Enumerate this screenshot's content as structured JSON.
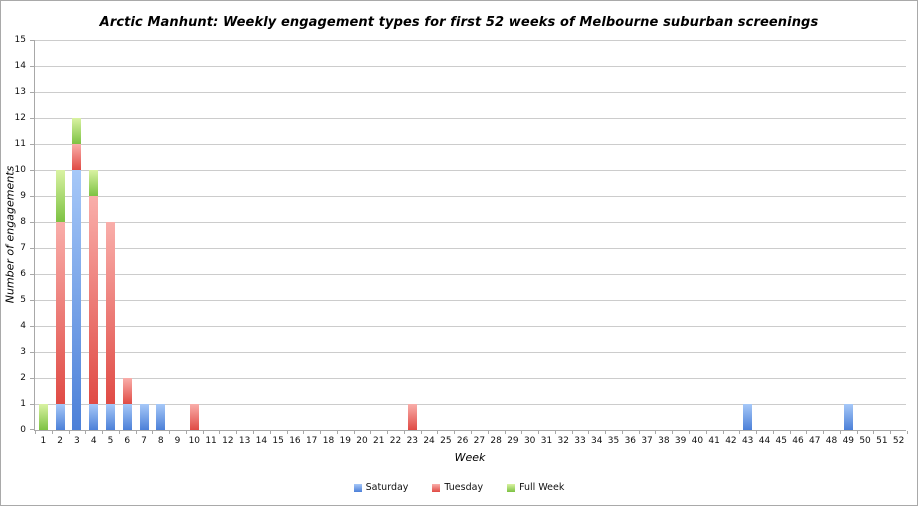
{
  "chart_data": {
    "type": "bar",
    "stacked": true,
    "title": "Arctic Manhunt: Weekly engagement types for first 52 weeks of Melbourne suburban screenings",
    "xlabel": "Week",
    "ylabel": "Number of engagements",
    "ylim": [
      0,
      15
    ],
    "ytick_step": 1,
    "grid": true,
    "legend_position": "bottom",
    "categories": [
      "1",
      "2",
      "3",
      "4",
      "5",
      "6",
      "7",
      "8",
      "9",
      "10",
      "11",
      "12",
      "13",
      "14",
      "15",
      "16",
      "17",
      "18",
      "19",
      "20",
      "21",
      "22",
      "23",
      "24",
      "25",
      "26",
      "27",
      "28",
      "29",
      "30",
      "31",
      "32",
      "33",
      "34",
      "35",
      "36",
      "37",
      "38",
      "39",
      "40",
      "41",
      "42",
      "43",
      "44",
      "45",
      "46",
      "47",
      "48",
      "49",
      "50",
      "51",
      "52"
    ],
    "series": [
      {
        "name": "Saturday",
        "color": "#74a4ee",
        "gradient_top": "#a6c8f8",
        "gradient_bottom": "#4c80d8",
        "values": [
          0,
          1,
          10,
          1,
          1,
          1,
          1,
          1,
          0,
          0,
          0,
          0,
          0,
          0,
          0,
          0,
          0,
          0,
          0,
          0,
          0,
          0,
          0,
          0,
          0,
          0,
          0,
          0,
          0,
          0,
          0,
          0,
          0,
          0,
          0,
          0,
          0,
          0,
          0,
          0,
          0,
          0,
          1,
          0,
          0,
          0,
          0,
          0,
          1,
          0,
          0,
          0
        ]
      },
      {
        "name": "Tuesday",
        "color": "#f07470",
        "gradient_top": "#f9aeaa",
        "gradient_bottom": "#e04b45",
        "values": [
          0,
          7,
          1,
          8,
          7,
          1,
          0,
          0,
          0,
          1,
          0,
          0,
          0,
          0,
          0,
          0,
          0,
          0,
          0,
          0,
          0,
          0,
          1,
          0,
          0,
          0,
          0,
          0,
          0,
          0,
          0,
          0,
          0,
          0,
          0,
          0,
          0,
          0,
          0,
          0,
          0,
          0,
          0,
          0,
          0,
          0,
          0,
          0,
          0,
          0,
          0,
          0
        ]
      },
      {
        "name": "Full Week",
        "color": "#a8db70",
        "gradient_top": "#d9f2a2",
        "gradient_bottom": "#7dc243",
        "values": [
          1,
          2,
          1,
          1,
          0,
          0,
          0,
          0,
          0,
          0,
          0,
          0,
          0,
          0,
          0,
          0,
          0,
          0,
          0,
          0,
          0,
          0,
          0,
          0,
          0,
          0,
          0,
          0,
          0,
          0,
          0,
          0,
          0,
          0,
          0,
          0,
          0,
          0,
          0,
          0,
          0,
          0,
          0,
          0,
          0,
          0,
          0,
          0,
          0,
          0,
          0,
          0
        ]
      }
    ],
    "colors": {
      "gridline": "#cccccc",
      "axis": "#a8a8a8",
      "text": "#111111"
    }
  }
}
